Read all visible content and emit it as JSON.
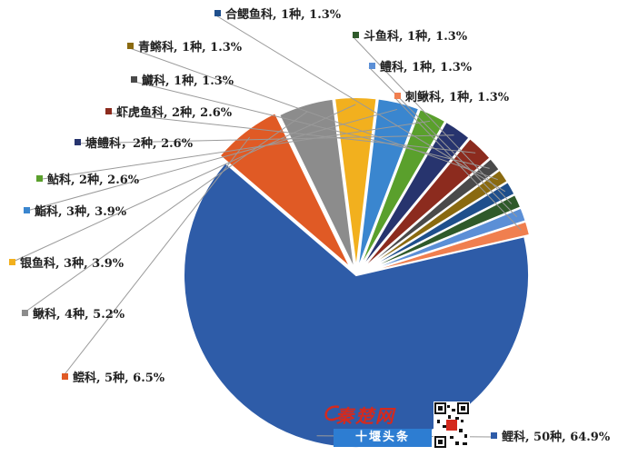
{
  "chart_data": {
    "type": "pie",
    "slices": [
      {
        "label": "鲤科, 50种, 64.9%",
        "value": 64.9,
        "color": "#2e5ca8"
      },
      {
        "label": "鲿科, 5种, 6.5%",
        "value": 6.5,
        "color": "#e05a25"
      },
      {
        "label": "鳅科, 4种, 5.2%",
        "value": 5.2,
        "color": "#8c8c8c"
      },
      {
        "label": "银鱼科, 3种, 3.9%",
        "value": 3.9,
        "color": "#f2b01e"
      },
      {
        "label": "鮨科, 3种, 3.9%",
        "value": 3.9,
        "color": "#3a86cf"
      },
      {
        "label": "鲇科, 2种, 2.6%",
        "value": 2.6,
        "color": "#5aa02c"
      },
      {
        "label": "塘鳢科，2种, 2.6%",
        "value": 2.6,
        "color": "#27346e"
      },
      {
        "label": "虾虎鱼科, 2种, 2.6%",
        "value": 2.6,
        "color": "#8c2b1e"
      },
      {
        "label": "鱵科, 1种, 1.3%",
        "value": 1.3,
        "color": "#4a4a4a"
      },
      {
        "label": "青鳉科, 1种, 1.3%",
        "value": 1.3,
        "color": "#8a6a10"
      },
      {
        "label": "合鳃鱼科, 1种, 1.3%",
        "value": 1.3,
        "color": "#1f4f8c"
      },
      {
        "label": "斗鱼科, 1种, 1.3%",
        "value": 1.3,
        "color": "#2f5a2a"
      },
      {
        "label": "鳢科, 1种, 1.3%",
        "value": 1.3,
        "color": "#5b8fd6"
      },
      {
        "label": "刺鳅科, 1种, 1.3%",
        "value": 1.3,
        "color": "#f07f4f"
      }
    ]
  },
  "watermark": {
    "brand": "秦楚网",
    "caption": "十堰头条"
  }
}
